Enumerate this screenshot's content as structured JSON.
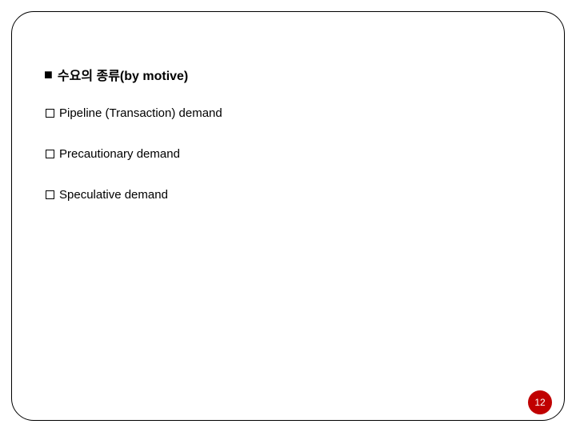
{
  "heading": {
    "bullet": "■",
    "text": "수요의  종류(by motive)"
  },
  "items": [
    {
      "text": "Pipeline (Transaction) demand"
    },
    {
      "text": "Precautionary demand"
    },
    {
      "text": "Speculative demand"
    }
  ],
  "page_number": "12",
  "colors": {
    "badge_bg": "#c00000",
    "badge_fg": "#ffffff",
    "frame_border": "#000000",
    "text": "#000000"
  }
}
